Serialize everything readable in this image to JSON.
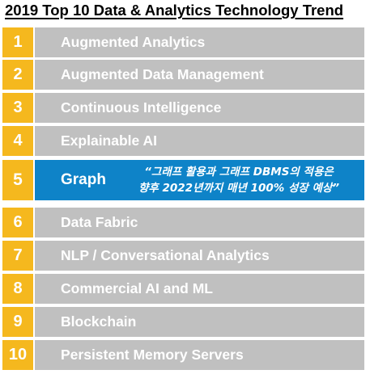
{
  "title": "2019 Top 10 Data & Analytics Technology Trend",
  "trends": [
    {
      "rank": "1",
      "label": "Augmented Analytics"
    },
    {
      "rank": "2",
      "label": "Augmented Data Management"
    },
    {
      "rank": "3",
      "label": "Continuous Intelligence"
    },
    {
      "rank": "4",
      "label": "Explainable AI"
    },
    {
      "rank": "5",
      "label": "Graph",
      "quote_line1": "“그래프 활용과 그래프 DBMS의 적용은",
      "quote_line2": "향후 2022년까지 매년 100% 성장 예상”"
    },
    {
      "rank": "6",
      "label": "Data Fabric"
    },
    {
      "rank": "7",
      "label": "NLP / Conversational Analytics"
    },
    {
      "rank": "8",
      "label": "Commercial AI and ML"
    },
    {
      "rank": "9",
      "label": "Blockchain"
    },
    {
      "rank": "10",
      "label": "Persistent Memory Servers"
    }
  ],
  "colors": {
    "number_box": "#f5b81e",
    "bar": "#c0c0c0",
    "highlight_bar": "#0e83c8",
    "text": "#ffffff"
  }
}
